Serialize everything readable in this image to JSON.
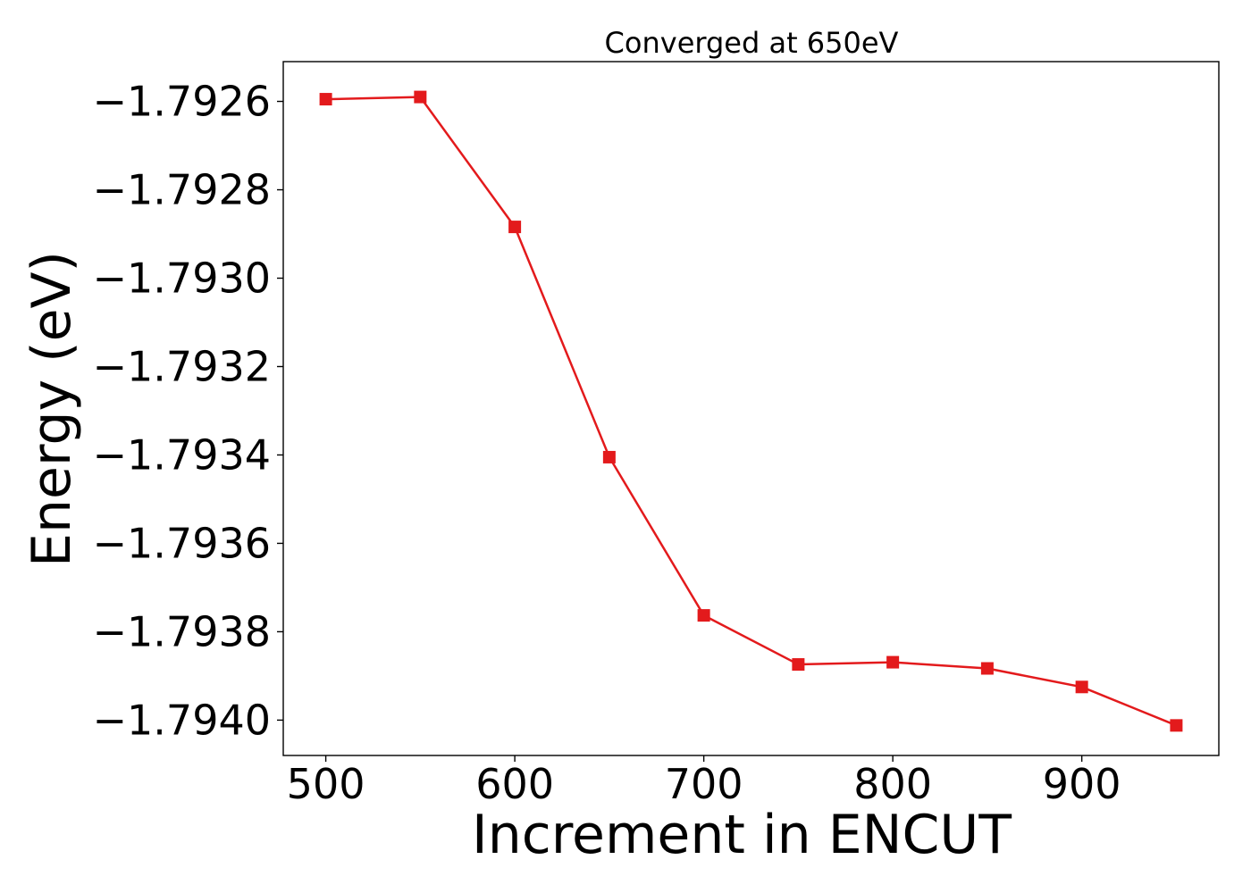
{
  "chart_data": {
    "type": "line",
    "title": "Converged at 650eV",
    "xlabel": "Increment in ENCUT",
    "ylabel": "Energy (eV)",
    "xlim": [
      477.5,
      972.5
    ],
    "ylim": [
      -1.79408,
      -1.79251
    ],
    "xticks": [
      500,
      600,
      700,
      800,
      900
    ],
    "xtick_labels": [
      "500",
      "600",
      "700",
      "800",
      "900"
    ],
    "yticks": [
      -1.7926,
      -1.7928,
      -1.793,
      -1.7932,
      -1.7934,
      -1.7936,
      -1.7938,
      -1.794
    ],
    "ytick_labels": [
      "−1.7926",
      "−1.7928",
      "−1.7930",
      "−1.7932",
      "−1.7934",
      "−1.7936",
      "−1.7938",
      "−1.7940"
    ],
    "grid": false,
    "legend": "none",
    "series": [
      {
        "color": "#e31a1c",
        "marker": "square",
        "x": [
          500,
          550,
          600,
          650,
          700,
          750,
          800,
          850,
          900,
          950
        ],
        "y": [
          -1.792595,
          -1.79259,
          -1.792884,
          -1.793405,
          -1.793763,
          -1.793874,
          -1.793869,
          -1.793883,
          -1.793925,
          -1.794012
        ]
      }
    ]
  }
}
